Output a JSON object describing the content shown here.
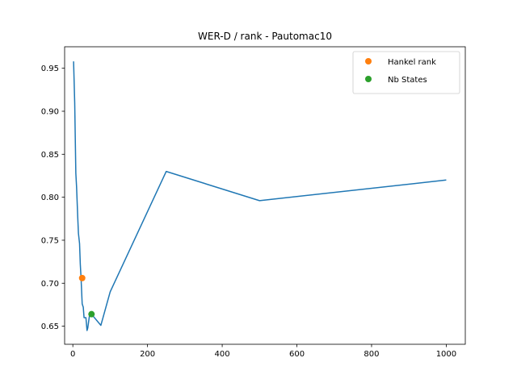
{
  "chart_data": {
    "type": "line",
    "title": "WER-D / rank - Pautomac10",
    "xlabel": "",
    "ylabel": "",
    "xlim": [
      -22,
      1051
    ],
    "ylim": [
      0.629,
      0.975
    ],
    "x_ticks": [
      0,
      200,
      400,
      600,
      800,
      1000
    ],
    "y_ticks": [
      0.65,
      0.7,
      0.75,
      0.8,
      0.85,
      0.9,
      0.95
    ],
    "grid": false,
    "legend_position": "top-right",
    "series": [
      {
        "type": "line",
        "color": "#1f77b4",
        "x": [
          2,
          5,
          8,
          10,
          13,
          15,
          18,
          20,
          22,
          25,
          28,
          30,
          35,
          38,
          40,
          45,
          50,
          75,
          100,
          250,
          500,
          1000
        ],
        "y": [
          0.958,
          0.91,
          0.828,
          0.812,
          0.778,
          0.758,
          0.746,
          0.722,
          0.706,
          0.676,
          0.672,
          0.66,
          0.66,
          0.645,
          0.648,
          0.664,
          0.664,
          0.651,
          0.69,
          0.83,
          0.796,
          0.82
        ]
      },
      {
        "type": "scatter",
        "name": "Hankel rank",
        "color": "#ff7f0e",
        "x": [
          25
        ],
        "y": [
          0.706
        ]
      },
      {
        "type": "scatter",
        "name": "Nb States",
        "color": "#2ca02c",
        "x": [
          50
        ],
        "y": [
          0.664
        ]
      }
    ]
  }
}
